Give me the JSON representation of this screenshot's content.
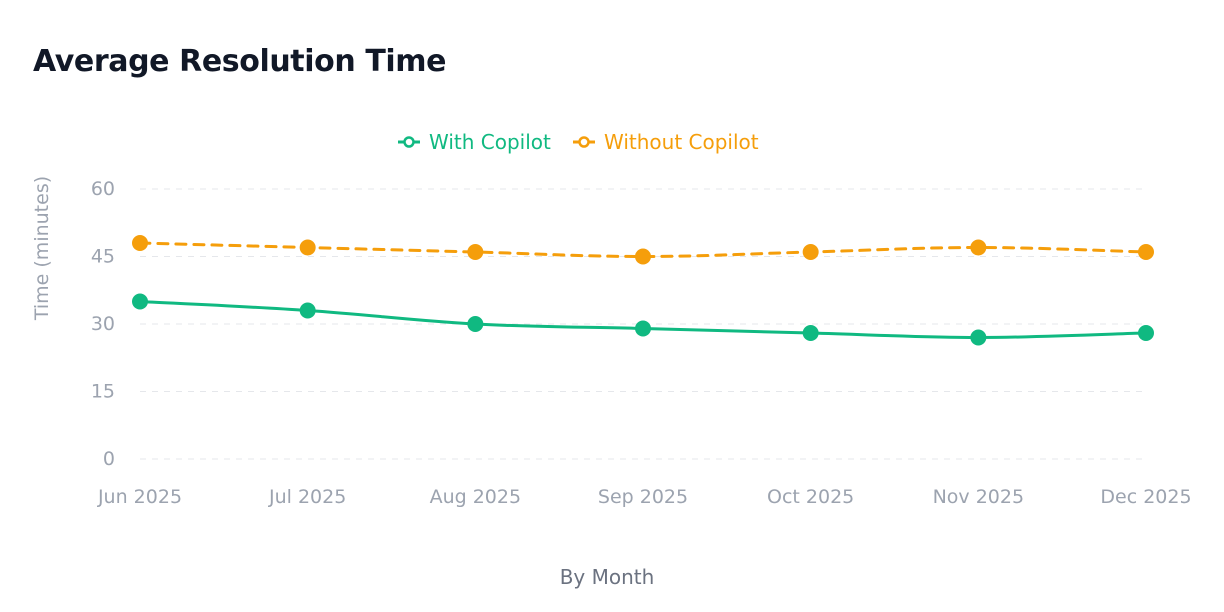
{
  "title": "Average Resolution Time",
  "chart_data": {
    "type": "line",
    "title": "Average Resolution Time",
    "xlabel": "By Month",
    "ylabel": "Time (minutes)",
    "categories": [
      "Jun 2025",
      "Jul 2025",
      "Aug 2025",
      "Sep 2025",
      "Oct 2025",
      "Nov 2025",
      "Dec 2025"
    ],
    "ylim": [
      0,
      60
    ],
    "yticks": [
      0,
      15,
      30,
      45,
      60
    ],
    "grid": true,
    "legend_position": "top-center",
    "series": [
      {
        "name": "With Copilot",
        "color": "#10b981",
        "line_style": "solid",
        "values": [
          35,
          33,
          30,
          29,
          28,
          27,
          28
        ]
      },
      {
        "name": "Without Copilot",
        "color": "#f59e0b",
        "line_style": "dashed",
        "values": [
          48,
          47,
          46,
          45,
          46,
          47,
          46
        ]
      }
    ]
  }
}
